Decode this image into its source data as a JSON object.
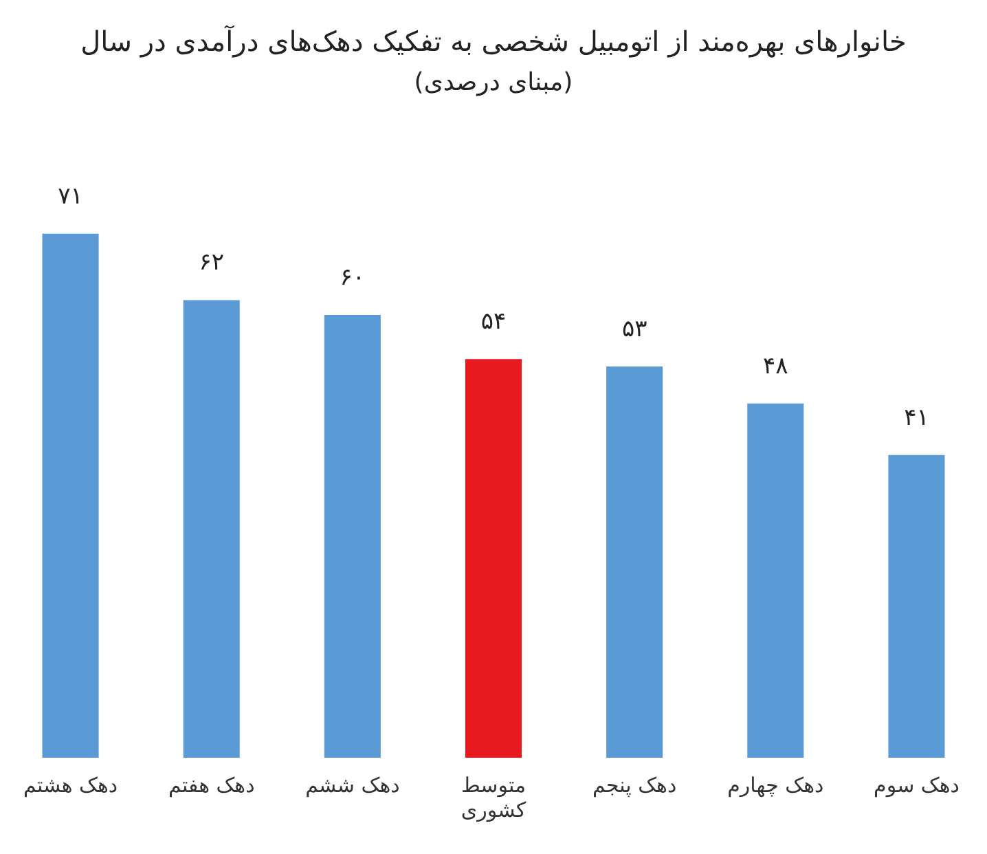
{
  "chart_data": {
    "type": "bar",
    "title": "خانوارهای بهره‌مند از اتومبیل شخصی به تفکیک دهک‌های درآمدی در سال",
    "subtitle": "(مبنای درصدی)",
    "categories": [
      "دهک هشتم",
      "دهک هفتم",
      "دهک ششم",
      "متوسط\nکشوری",
      "دهک پنجم",
      "دهک چهارم",
      "دهک سوم"
    ],
    "values": [
      71,
      62,
      60,
      54,
      53,
      48,
      41
    ],
    "colors": [
      "#5b9bd5",
      "#5b9bd5",
      "#5b9bd5",
      "#e8191f",
      "#5b9bd5",
      "#5b9bd5",
      "#5b9bd5"
    ],
    "value_labels": [
      "۷۱",
      "۶۲",
      "۶۰",
      "۵۴",
      "۵۳",
      "۴۸",
      "۴۱"
    ],
    "grid": false,
    "legend": false
  }
}
